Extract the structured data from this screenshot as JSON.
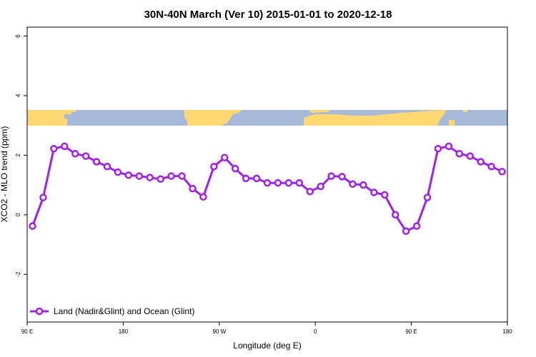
{
  "chart_data": {
    "type": "line",
    "title": "30N-40N March (Ver 10)   2015-01-01 to 2020-12-18",
    "xlabel": "Longitude (deg E)",
    "ylabel": "XCO2 - MLO trend (ppm)",
    "xlim": [
      90,
      540
    ],
    "ylim": [
      -3.6,
      6.3
    ],
    "xticks": [
      {
        "value": 90,
        "label": "90 E"
      },
      {
        "value": 180,
        "label": "180"
      },
      {
        "value": 270,
        "label": "90 W"
      },
      {
        "value": 360,
        "label": "0"
      },
      {
        "value": 450,
        "label": "90 E"
      },
      {
        "value": 540,
        "label": "180"
      }
    ],
    "yticks": [
      {
        "value": -2,
        "label": "-2"
      },
      {
        "value": 0,
        "label": "0"
      },
      {
        "value": 2,
        "label": "2"
      },
      {
        "value": 4,
        "label": "4"
      },
      {
        "value": 6,
        "label": "6"
      }
    ],
    "grid": false,
    "legend_position": "bottom-left",
    "land_mask_colors": {
      "ocean": "#a6b9d8",
      "land": "#ffd873"
    },
    "series": [
      {
        "name": "Land (Nadir&Glint) and Ocean (Glint)",
        "color": "#a020f0",
        "marker": "open-circle",
        "x": [
          95,
          105,
          115,
          125,
          135,
          145,
          155,
          165,
          175,
          185,
          195,
          205,
          215,
          225,
          235,
          245,
          255,
          265,
          275,
          285,
          295,
          305,
          315,
          325,
          335,
          345,
          355,
          365,
          375,
          385,
          395,
          405,
          415,
          425,
          435,
          445,
          455,
          465,
          475,
          485,
          495,
          505,
          515,
          525,
          535
        ],
        "y": [
          -0.38,
          0.58,
          2.22,
          2.3,
          2.05,
          1.97,
          1.78,
          1.62,
          1.43,
          1.33,
          1.3,
          1.25,
          1.2,
          1.3,
          1.3,
          0.88,
          0.6,
          1.62,
          1.92,
          1.55,
          1.22,
          1.22,
          1.07,
          1.07,
          1.07,
          1.07,
          0.78,
          0.95,
          1.3,
          1.28,
          1.03,
          1.0,
          0.75,
          0.67,
          0.0,
          -0.55,
          -0.38,
          0.58,
          2.22,
          2.3,
          2.05,
          1.97,
          1.78,
          1.62,
          1.45
        ]
      }
    ]
  }
}
